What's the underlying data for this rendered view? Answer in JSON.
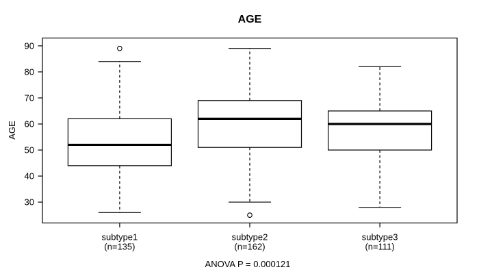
{
  "chart_data": {
    "type": "boxplot",
    "title": "AGE",
    "ylabel": "AGE",
    "xlabel": "",
    "caption": "ANOVA P = 0.000121",
    "y_ticks": [
      30,
      40,
      50,
      60,
      70,
      80,
      90
    ],
    "ylim": [
      22,
      93
    ],
    "grid": false,
    "legend": "none",
    "colors": {
      "line": "#000000",
      "box_fill": "#ffffff",
      "background": "#ffffff"
    },
    "groups": [
      {
        "label": "subtype1",
        "sublabel": "(n=135)",
        "n": 135,
        "whisker_low": 26,
        "q1": 44,
        "median": 52,
        "q3": 62,
        "whisker_high": 84,
        "outliers": [
          89
        ]
      },
      {
        "label": "subtype2",
        "sublabel": "(n=162)",
        "n": 162,
        "whisker_low": 30,
        "q1": 51,
        "median": 62,
        "q3": 69,
        "whisker_high": 89,
        "outliers": [
          25
        ]
      },
      {
        "label": "subtype3",
        "sublabel": "(n=111)",
        "n": 111,
        "whisker_low": 28,
        "q1": 50,
        "median": 60,
        "q3": 65,
        "whisker_high": 82,
        "outliers": []
      }
    ]
  }
}
